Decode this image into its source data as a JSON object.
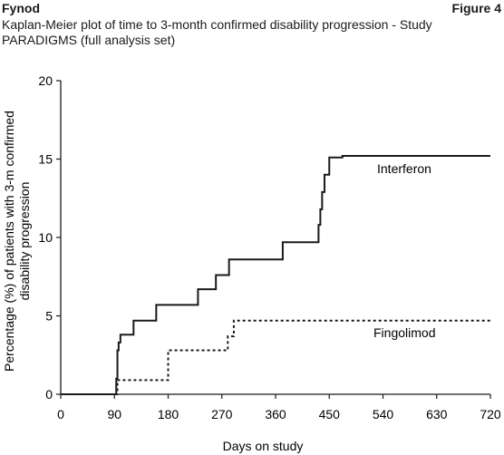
{
  "header": {
    "brand": "Fynod",
    "figure_label": "Figure 4",
    "caption_line1": "Kaplan-Meier plot of time to 3-month confirmed disability progression - Study",
    "caption_line2": "PARADIGMS (full analysis set)"
  },
  "chart_data": {
    "type": "line",
    "title": "Kaplan-Meier plot of time to 3-month confirmed disability progression - Study PARADIGMS (full analysis set)",
    "xlabel": "Days on study",
    "ylabel": "Percentage (%) of patients with 3-m confirmed disability progression",
    "xlim": [
      0,
      720
    ],
    "ylim": [
      0,
      20
    ],
    "xticks": [
      "0",
      "90",
      "180",
      "270",
      "360",
      "450",
      "540",
      "630",
      "720"
    ],
    "yticks": [
      "0",
      "5",
      "10",
      "15",
      "20"
    ],
    "step": true,
    "series": [
      {
        "name": "Interferon",
        "style": "solid",
        "color": "#1a1a1a",
        "x": [
          0,
          93,
          95,
          97,
          100,
          122,
          160,
          230,
          260,
          282,
          372,
          432,
          435,
          438,
          442,
          450,
          472,
          720
        ],
        "y": [
          0,
          1.0,
          2.8,
          3.3,
          3.8,
          4.7,
          5.7,
          6.7,
          7.6,
          8.6,
          9.7,
          10.8,
          11.8,
          12.9,
          14.0,
          15.1,
          15.2,
          15.2
        ]
      },
      {
        "name": "Fingolimod",
        "style": "dashed",
        "color": "#1a1a1a",
        "x": [
          0,
          95,
          180,
          280,
          290,
          720
        ],
        "y": [
          0,
          0.9,
          2.8,
          3.7,
          4.7,
          4.7
        ]
      }
    ]
  }
}
